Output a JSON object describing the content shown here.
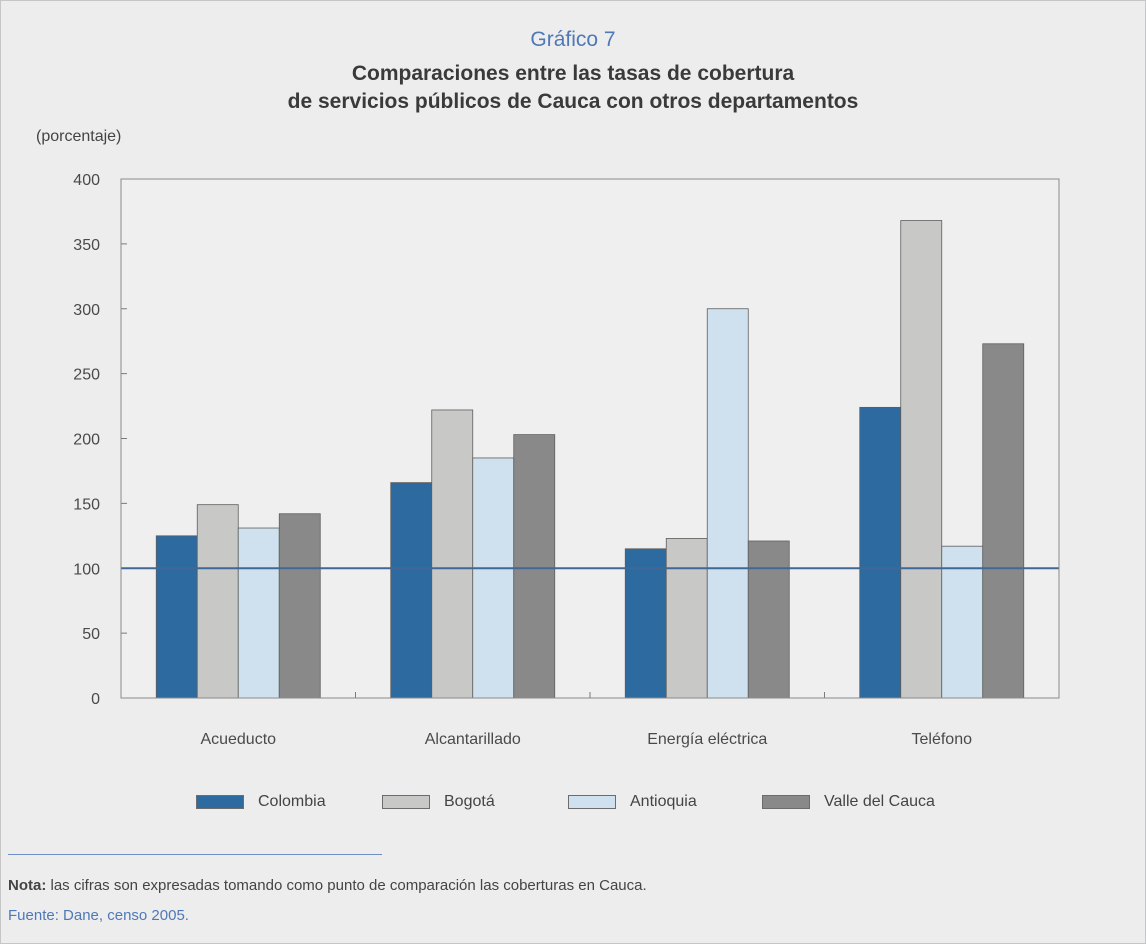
{
  "header": {
    "number": "Gráfico 7",
    "title_line1": "Comparaciones entre las tasas de cobertura",
    "title_line2": "de servicios públicos de Cauca con otros departamentos"
  },
  "chart_data": {
    "type": "bar",
    "title": "Comparaciones entre las tasas de cobertura de servicios públicos de Cauca con otros departamentos",
    "ylabel": "(porcentaje)",
    "xlabel": "",
    "categories": [
      "Acueducto",
      "Alcantarillado",
      "Energía eléctrica",
      "Teléfono"
    ],
    "series": [
      {
        "name": "Colombia",
        "values": [
          125,
          166,
          115,
          224
        ],
        "color": "#2d6a9f"
      },
      {
        "name": "Bogotá",
        "values": [
          149,
          222,
          123,
          368
        ],
        "color": "#c8c8c7"
      },
      {
        "name": "Antioquia",
        "values": [
          131,
          185,
          300,
          117
        ],
        "color": "#cfe1ee"
      },
      {
        "name": "Valle del Cauca",
        "values": [
          142,
          203,
          121,
          273
        ],
        "color": "#8a8989"
      }
    ],
    "ylim": [
      0,
      400
    ],
    "yticks": [
      0,
      50,
      100,
      150,
      200,
      250,
      300,
      350,
      400
    ],
    "reference_line": {
      "value": 100,
      "color": "#3f6897"
    },
    "grid": false,
    "legend_position": "bottom"
  },
  "footer": {
    "note_label": "Nota:",
    "note_text": " las cifras son expresadas tomando como punto de comparación las coberturas en Cauca.",
    "source": "Fuente: Dane, censo 2005."
  }
}
